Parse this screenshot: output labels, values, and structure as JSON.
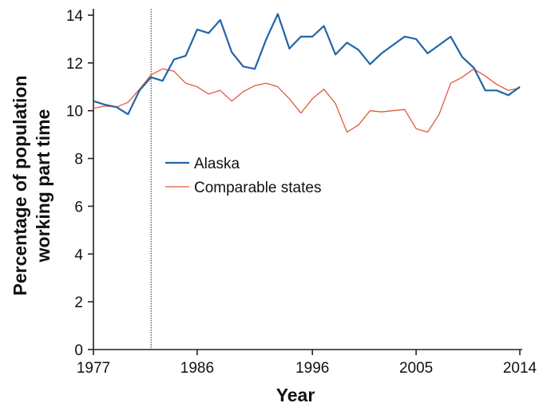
{
  "chart_data": {
    "type": "line",
    "title": "",
    "xlabel": "Year",
    "ylabel_lines": [
      "Percentage of population",
      "working part time"
    ],
    "xlim": [
      1977,
      2014
    ],
    "ylim": [
      0,
      14
    ],
    "xticks": [
      1977,
      1986,
      1996,
      2005,
      2014
    ],
    "yticks": [
      0,
      2,
      4,
      6,
      8,
      10,
      12,
      14
    ],
    "reference_line_x": 1982,
    "grid": false,
    "legend_position": "center-left",
    "x": [
      1977,
      1978,
      1979,
      1980,
      1981,
      1982,
      1983,
      1984,
      1985,
      1986,
      1987,
      1988,
      1989,
      1990,
      1991,
      1992,
      1993,
      1994,
      1995,
      1996,
      1997,
      1998,
      1999,
      2000,
      2001,
      2002,
      2003,
      2004,
      2005,
      2006,
      2007,
      2008,
      2009,
      2010,
      2011,
      2012,
      2013,
      2014
    ],
    "series": [
      {
        "name": "Alaska",
        "color": "#2166a6",
        "values": [
          10.4,
          10.25,
          10.15,
          9.85,
          10.85,
          11.4,
          11.25,
          12.15,
          12.3,
          13.4,
          13.25,
          13.8,
          12.45,
          11.85,
          11.75,
          13.0,
          14.05,
          12.6,
          13.1,
          13.1,
          13.55,
          12.35,
          12.85,
          12.55,
          11.95,
          12.4,
          12.75,
          13.1,
          13.0,
          12.4,
          12.75,
          13.1,
          12.25,
          11.8,
          10.85,
          10.85,
          10.65,
          11.0
        ]
      },
      {
        "name": "Comparable states",
        "color": "#e05a3d",
        "values": [
          10.1,
          10.2,
          10.15,
          10.35,
          10.9,
          11.5,
          11.75,
          11.65,
          11.15,
          11.0,
          10.7,
          10.85,
          10.4,
          10.8,
          11.05,
          11.15,
          11.0,
          10.5,
          9.9,
          10.5,
          10.9,
          10.3,
          9.1,
          9.4,
          10.0,
          9.95,
          10.0,
          10.05,
          9.25,
          9.1,
          9.85,
          11.15,
          11.4,
          11.75,
          11.45,
          11.1,
          10.85,
          10.95
        ]
      }
    ]
  }
}
